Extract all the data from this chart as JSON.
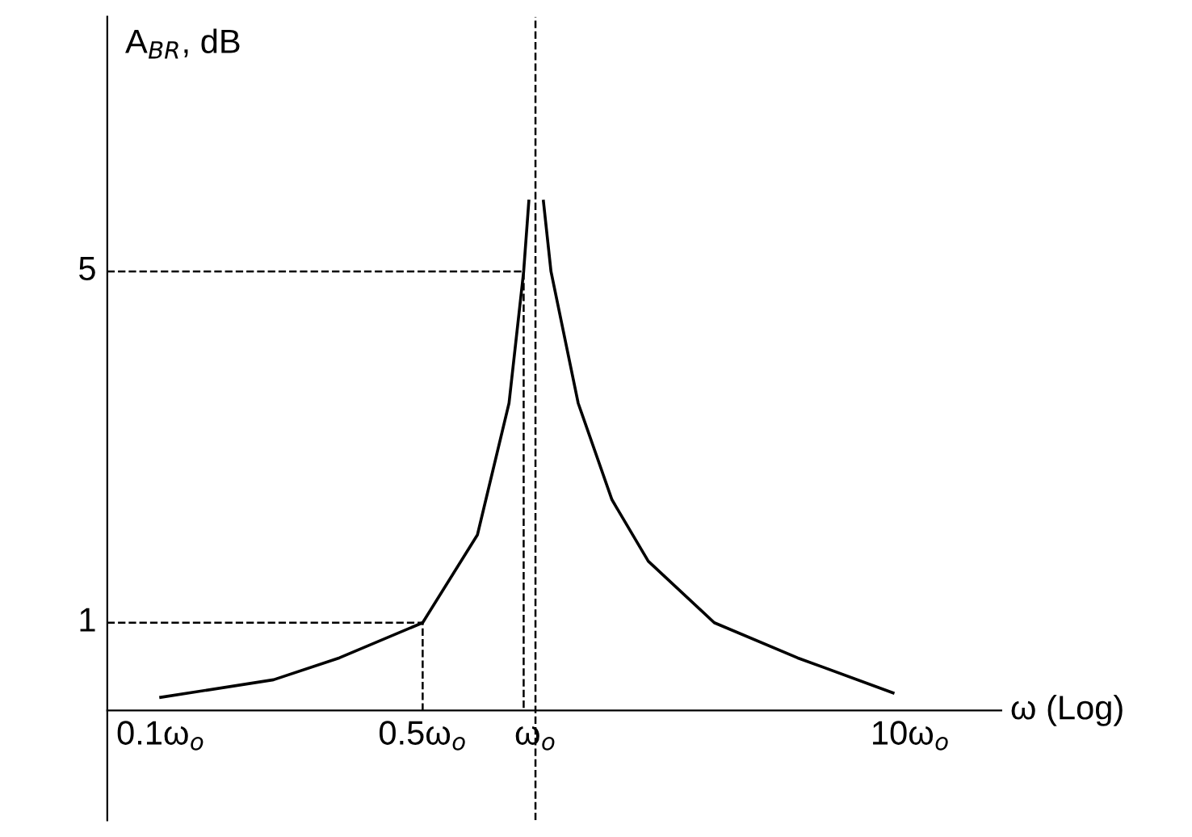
{
  "chart_data": {
    "type": "line",
    "xlabel": "ω (Log)",
    "ylabel": "A$_{BR}$, dB",
    "log": "x",
    "grid": false,
    "legend": false,
    "marker": "none",
    "line_style": "solid",
    "xlim": [
      0.072,
      17.5
    ],
    "ylim": [
      -1.25,
      7.9
    ],
    "xticks": [
      {
        "value": 0.1,
        "label": "0.1ω$_{o}$"
      },
      {
        "value": 0.5,
        "label": "0.5ω$_{o}$"
      },
      {
        "value": 1,
        "label": "ω$_{o}$"
      },
      {
        "value": 10,
        "label": "10ω$_{o}$"
      }
    ],
    "yticks": [
      1,
      5
    ],
    "ref_lines": [
      {
        "axis": "x",
        "value": 1,
        "label": null,
        "color": "#000000",
        "line_style": "dashed"
      }
    ],
    "series": [
      {
        "color": "#000000",
        "x": [
          0.1,
          0.2,
          0.3,
          0.5,
          0.7,
          0.85,
          0.93,
          0.96
        ],
        "values": [
          0.15,
          0.35,
          0.6,
          1,
          2,
          3.5,
          5,
          5.8
        ]
      },
      {
        "color": "#000000",
        "x": [
          1.05,
          1.1,
          1.3,
          1.6,
          2,
          3,
          5,
          9
        ],
        "values": [
          5.8,
          5,
          3.5,
          2.4,
          1.7,
          1,
          0.6,
          0.2
        ]
      },
      {
        "color": "#000000",
        "line_style": "dashed",
        "x": [
          0.072,
          0.5,
          0.5
        ],
        "values": [
          1,
          1,
          0
        ]
      },
      {
        "color": "#000000",
        "line_style": "dashed",
        "x": [
          0.072,
          0.93,
          0.93
        ],
        "values": [
          5,
          5,
          0
        ]
      }
    ]
  }
}
